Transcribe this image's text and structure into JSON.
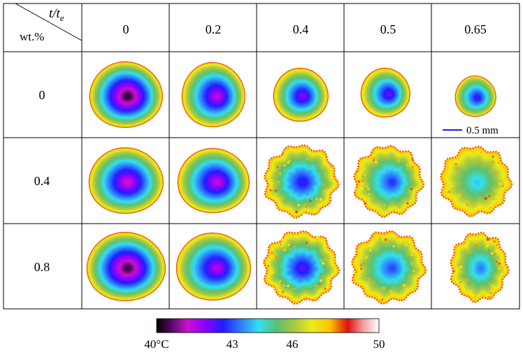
{
  "table": {
    "corner_col_header": "t/t",
    "corner_col_header_sub": "e",
    "corner_row_header": "wt.%",
    "time_ratios": [
      "0",
      "0.2",
      "0.4",
      "0.5",
      "0.65"
    ],
    "concentrations": [
      "0",
      "0.4",
      "0.8"
    ]
  },
  "scale_bar": {
    "label": "0.5 mm",
    "color": "#1a1aff"
  },
  "colorbar": {
    "tick_labels": [
      "40°C",
      "43",
      "46",
      "50"
    ],
    "tick_values": [
      40,
      43,
      46,
      50
    ],
    "min": 40,
    "max": 50,
    "stops": [
      {
        "v": 40.0,
        "color": "#000000"
      },
      {
        "v": 40.7,
        "color": "#5a0a6a"
      },
      {
        "v": 41.4,
        "color": "#cc11cc"
      },
      {
        "v": 42.2,
        "color": "#8b00ff"
      },
      {
        "v": 43.0,
        "color": "#1f1fff"
      },
      {
        "v": 43.8,
        "color": "#2f7fff"
      },
      {
        "v": 44.6,
        "color": "#33e0ee"
      },
      {
        "v": 45.4,
        "color": "#5cc070"
      },
      {
        "v": 46.2,
        "color": "#a8c840"
      },
      {
        "v": 47.0,
        "color": "#ecec1a"
      },
      {
        "v": 47.8,
        "color": "#ffc000"
      },
      {
        "v": 48.6,
        "color": "#dd1010"
      },
      {
        "v": 49.3,
        "color": "#f2a0a0"
      },
      {
        "v": 50.0,
        "color": "#ffffff"
      }
    ]
  },
  "thermal_maps": {
    "type": "heatmap",
    "rows": [
      {
        "concentration": "0",
        "cells": [
          {
            "time_ratio": "0",
            "center_temp": 40.4,
            "edge_temp": 47.4,
            "texture": "smooth"
          },
          {
            "time_ratio": "0.2",
            "center_temp": 41.6,
            "edge_temp": 47.4,
            "texture": "smooth"
          },
          {
            "time_ratio": "0.4",
            "center_temp": 42.2,
            "edge_temp": 47.6,
            "texture": "smooth"
          },
          {
            "time_ratio": "0.5",
            "center_temp": 42.4,
            "edge_temp": 47.6,
            "texture": "smooth"
          },
          {
            "time_ratio": "0.65",
            "center_temp": 42.8,
            "edge_temp": 47.2,
            "texture": "smooth"
          }
        ]
      },
      {
        "concentration": "0.4",
        "cells": [
          {
            "time_ratio": "0",
            "center_temp": 41.4,
            "edge_temp": 47.4,
            "texture": "smooth"
          },
          {
            "time_ratio": "0.2",
            "center_temp": 41.6,
            "edge_temp": 47.4,
            "texture": "smooth"
          },
          {
            "time_ratio": "0.4",
            "center_temp": 42.8,
            "edge_temp": 47.8,
            "texture": "rough"
          },
          {
            "time_ratio": "0.5",
            "center_temp": 43.2,
            "edge_temp": 47.8,
            "texture": "rough"
          },
          {
            "time_ratio": "0.65",
            "center_temp": 44.4,
            "edge_temp": 47.8,
            "texture": "rough"
          }
        ]
      },
      {
        "concentration": "0.8",
        "cells": [
          {
            "time_ratio": "0",
            "center_temp": 40.5,
            "edge_temp": 47.4,
            "texture": "smooth"
          },
          {
            "time_ratio": "0.2",
            "center_temp": 41.8,
            "edge_temp": 47.4,
            "texture": "smooth"
          },
          {
            "time_ratio": "0.4",
            "center_temp": 42.6,
            "edge_temp": 47.8,
            "texture": "rough"
          },
          {
            "time_ratio": "0.5",
            "center_temp": 43.4,
            "edge_temp": 47.8,
            "texture": "rough"
          },
          {
            "time_ratio": "0.65",
            "center_temp": 43.8,
            "edge_temp": 47.8,
            "texture": "rough"
          }
        ]
      }
    ]
  }
}
